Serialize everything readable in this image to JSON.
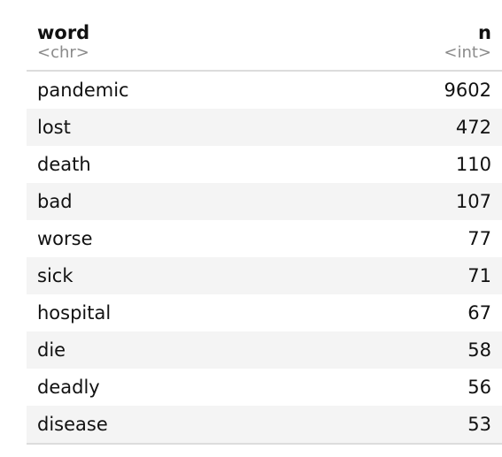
{
  "table": {
    "columns": [
      {
        "name": "word",
        "type": "<chr>"
      },
      {
        "name": "n",
        "type": "<int>"
      }
    ],
    "rows": [
      {
        "word": "pandemic",
        "n": "9602"
      },
      {
        "word": "lost",
        "n": "472"
      },
      {
        "word": "death",
        "n": "110"
      },
      {
        "word": "bad",
        "n": "107"
      },
      {
        "word": "worse",
        "n": "77"
      },
      {
        "word": "sick",
        "n": "71"
      },
      {
        "word": "hospital",
        "n": "67"
      },
      {
        "word": "die",
        "n": "58"
      },
      {
        "word": "deadly",
        "n": "56"
      },
      {
        "word": "disease",
        "n": "53"
      }
    ]
  }
}
